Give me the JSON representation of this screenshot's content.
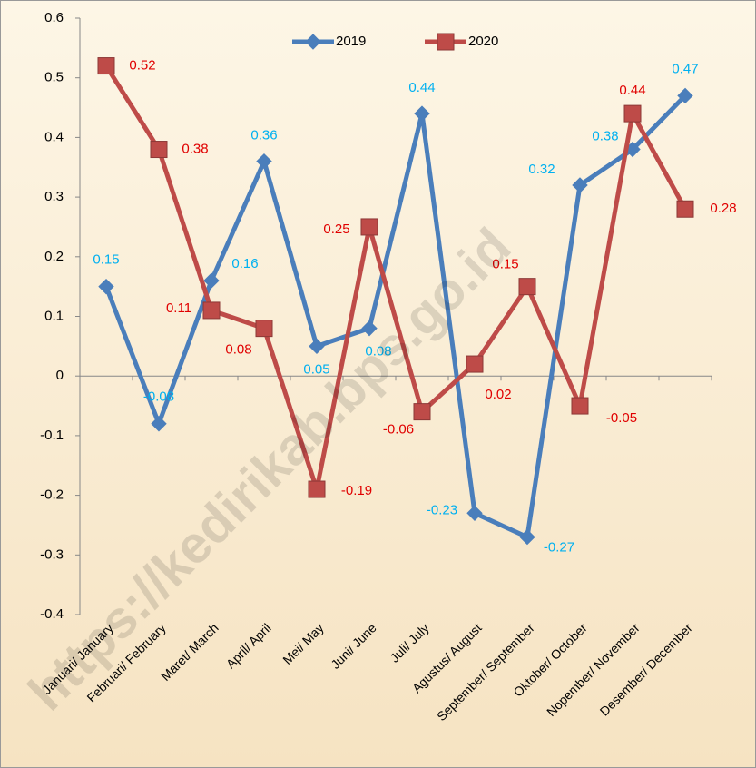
{
  "chart_data": {
    "type": "line",
    "categories": [
      "Januari/ January",
      "Februari/ February",
      "Maret/ March",
      "April/ April",
      "Mei/ May",
      "Juni/ June",
      "Juli/ July",
      "Agustus/ August",
      "September/ September",
      "Oktober/ October",
      "Nopember/ November",
      "Desember/ December"
    ],
    "series": [
      {
        "name": "2019",
        "color": "#4a7ebb",
        "label_color": "#00b0f0",
        "marker": "diamond",
        "values": [
          0.15,
          -0.08,
          0.16,
          0.36,
          0.05,
          0.08,
          0.44,
          -0.23,
          -0.27,
          0.32,
          0.38,
          0.47
        ]
      },
      {
        "name": "2020",
        "color": "#be4b48",
        "label_color": "#e00000",
        "marker": "square",
        "values": [
          0.52,
          0.38,
          0.11,
          0.08,
          -0.19,
          0.25,
          -0.06,
          0.02,
          0.15,
          -0.05,
          0.44,
          0.28
        ]
      }
    ],
    "ylim": [
      -0.4,
      0.6
    ],
    "yticks": [
      -0.4,
      -0.3,
      -0.2,
      -0.1,
      0,
      0.1,
      0.2,
      0.3,
      0.4,
      0.5,
      0.6
    ],
    "grid": false,
    "legend": "top",
    "watermark": "https://kedirikab.bps.go.id"
  }
}
